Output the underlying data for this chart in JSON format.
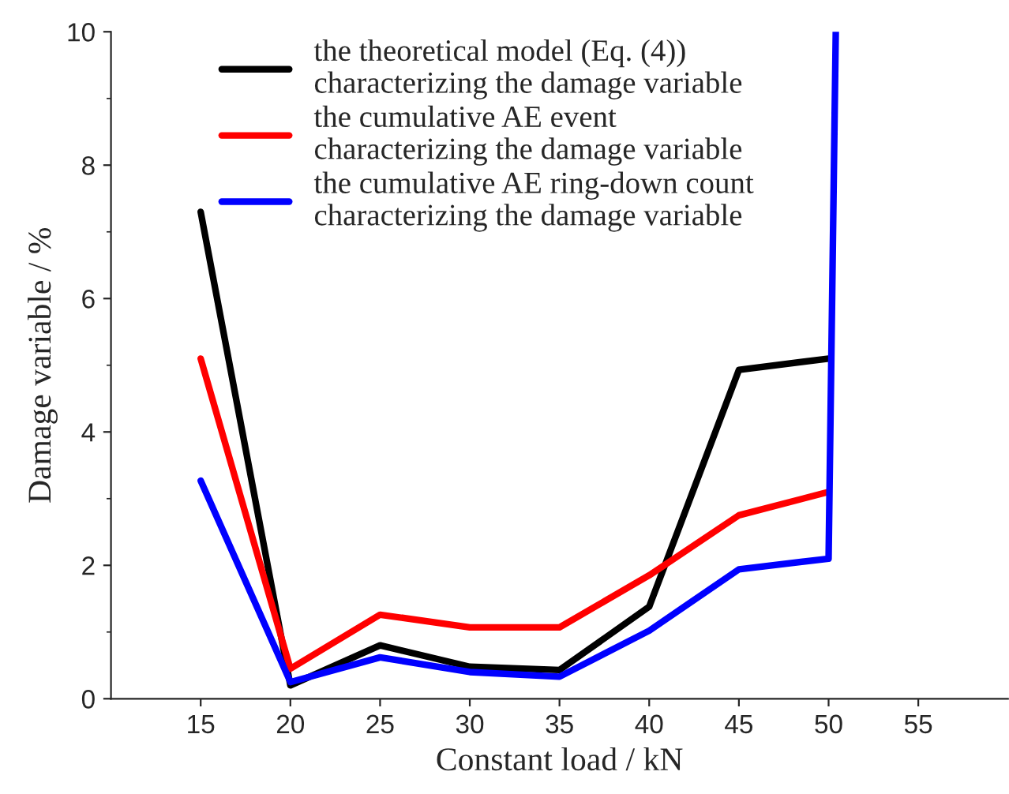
{
  "chart_data": {
    "type": "line",
    "xlabel": "Constant load / kN",
    "ylabel": "Damage variable / %",
    "xlim": [
      10,
      60
    ],
    "ylim": [
      0,
      10
    ],
    "xticks": [
      15,
      20,
      25,
      30,
      35,
      40,
      45,
      50,
      55
    ],
    "yticks": [
      0,
      2,
      4,
      6,
      8,
      10
    ],
    "grid": false,
    "legend": "top",
    "marker": "none",
    "line_style": "solid",
    "series": [
      {
        "name": "the theoretical model (Eq. (4))\ncharacterizing the damage variable",
        "color": "#000000",
        "x": [
          15,
          20,
          25,
          30,
          35,
          40,
          45,
          50
        ],
        "values": [
          7.3,
          0.2,
          0.8,
          0.48,
          0.43,
          1.38,
          4.93,
          5.1
        ]
      },
      {
        "name": "the cumulative AE event\ncharacterizing the damage variable",
        "color": "#ff0000",
        "x": [
          15,
          20,
          25,
          30,
          35,
          40,
          45,
          50
        ],
        "values": [
          5.1,
          0.45,
          1.26,
          1.07,
          1.07,
          1.85,
          2.75,
          3.1
        ]
      },
      {
        "name": "the cumulative AE ring-down count\ncharacterizing the damage variable",
        "color": "#0000ff",
        "x": [
          15,
          20,
          25,
          30,
          35,
          40,
          45,
          50,
          50.4
        ],
        "values": [
          3.27,
          0.25,
          0.62,
          0.4,
          0.33,
          1.02,
          1.94,
          2.1,
          10
        ]
      }
    ]
  }
}
